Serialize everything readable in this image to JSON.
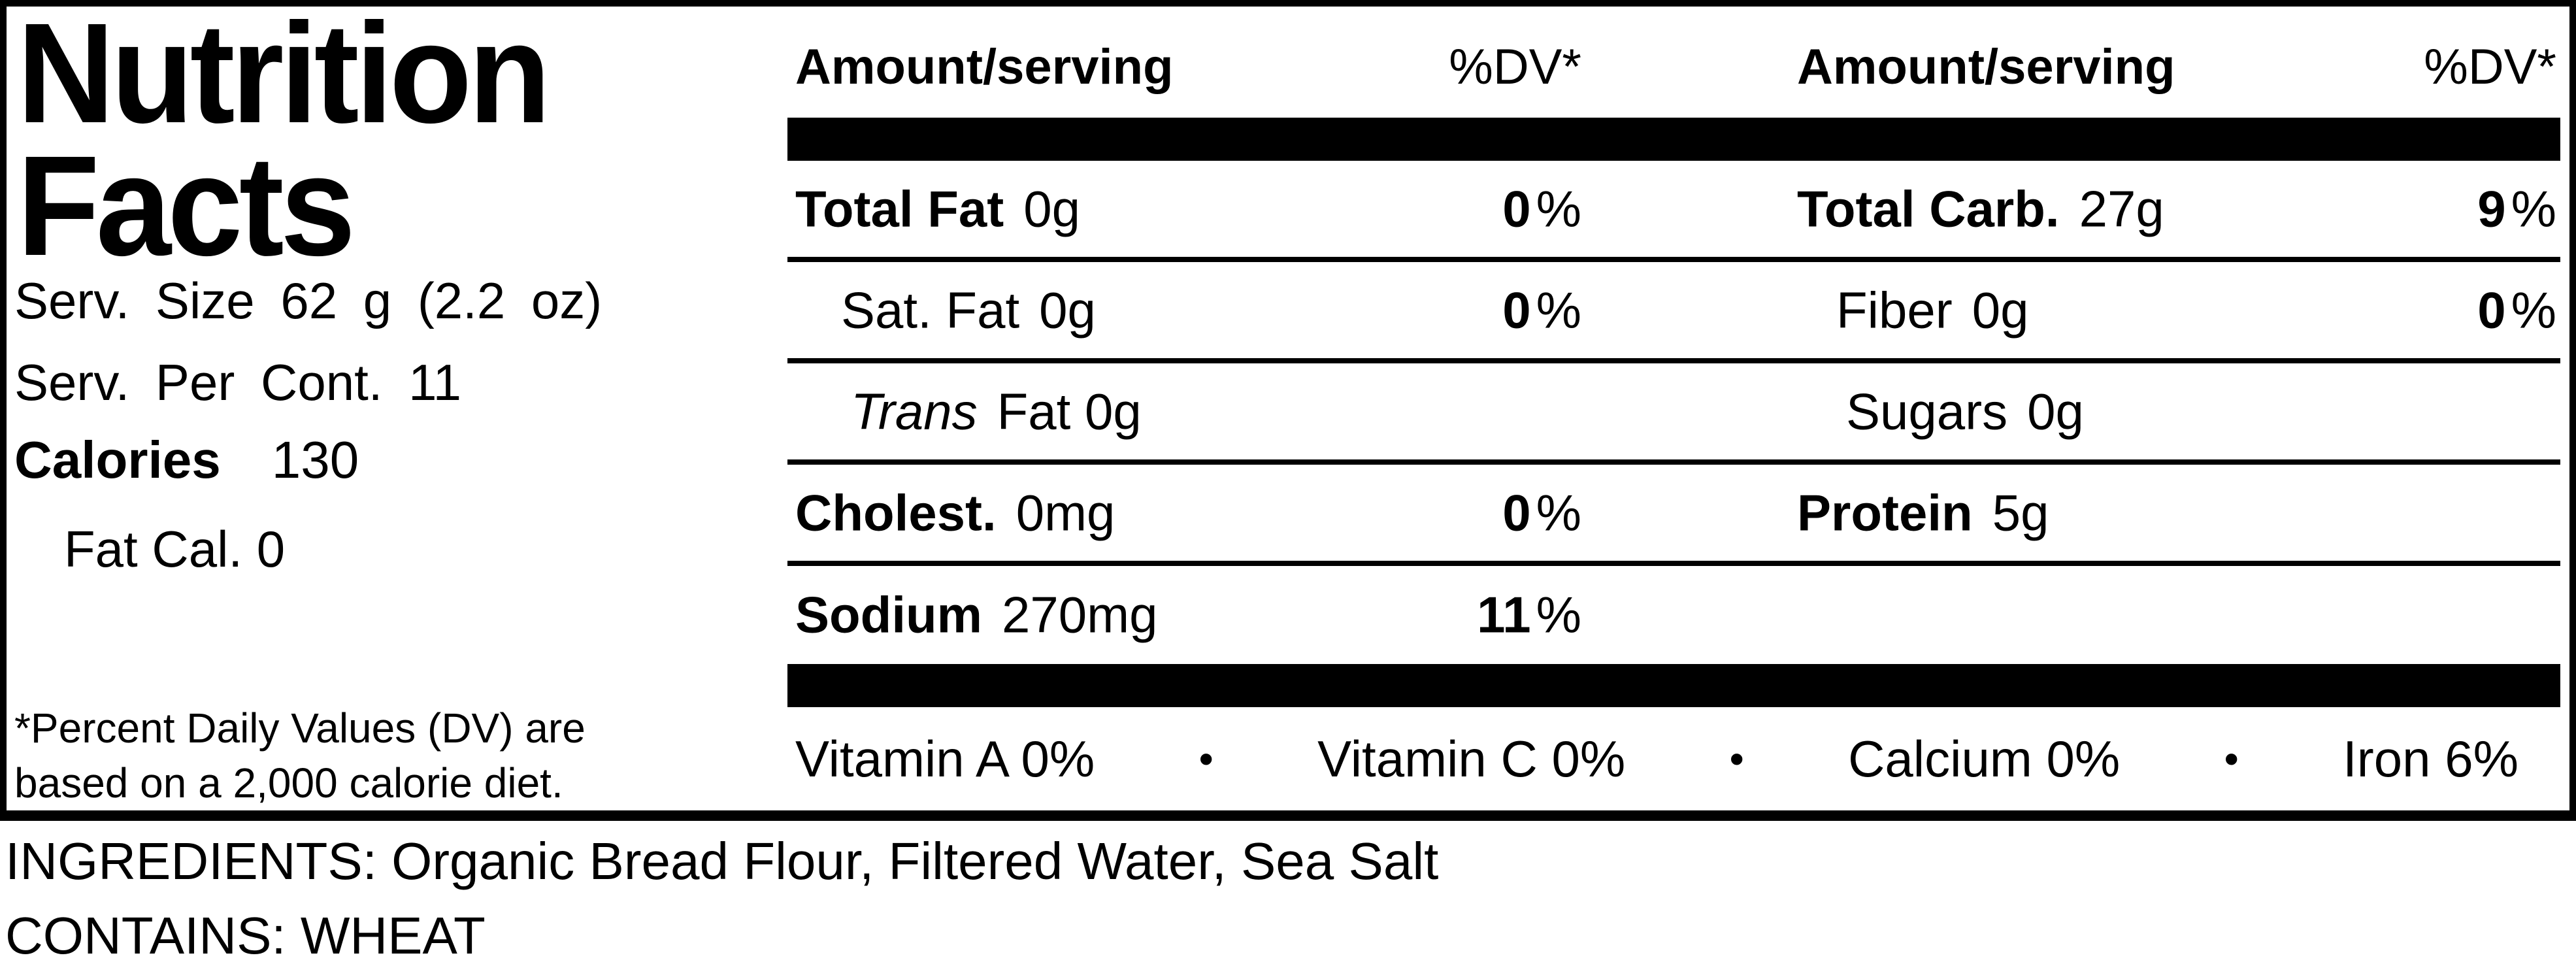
{
  "colors": {
    "text": "#000000",
    "background": "#ffffff"
  },
  "title": {
    "line1": "Nutrition",
    "line2": "Facts"
  },
  "serving": {
    "serv_size": "Serv. Size 62 g (2.2 oz)",
    "serv_per_cont": "Serv. Per Cont. 11",
    "calories_label": "Calories",
    "calories_value": "130",
    "fat_cal": "Fat Cal. 0"
  },
  "footnote": {
    "line1": "*Percent Daily Values (DV) are",
    "line2": "based on a 2,000 calorie diet."
  },
  "table": {
    "header": {
      "amount": "Amount/serving",
      "dv": "%DV*"
    },
    "rows": [
      {
        "mid": {
          "label": "Total Fat",
          "value": "0g",
          "dv_num": "0",
          "dv_sign": "%"
        },
        "right": {
          "label": "Total Carb.",
          "value": "27g",
          "dv_num": "9",
          "dv_sign": "%"
        }
      },
      {
        "mid": {
          "label": "Sat. Fat",
          "value": "0g",
          "dv_num": "0",
          "dv_sign": "%"
        },
        "right": {
          "label": "Fiber",
          "value": "0g",
          "dv_num": "0",
          "dv_sign": "%"
        }
      },
      {
        "mid": {
          "label": "Trans",
          "value": "Fat 0g",
          "dv_num": "",
          "dv_sign": ""
        },
        "right": {
          "label": "Sugars",
          "value": "0g",
          "dv_num": "",
          "dv_sign": ""
        }
      },
      {
        "mid": {
          "label": "Cholest.",
          "value": "0mg",
          "dv_num": "0",
          "dv_sign": "%"
        },
        "right": {
          "label": "Protein",
          "value": "5g",
          "dv_num": "",
          "dv_sign": ""
        }
      },
      {
        "mid": {
          "label": "Sodium",
          "value": "270mg",
          "dv_num": "11",
          "dv_sign": "%"
        },
        "right": {
          "label": "",
          "value": "",
          "dv_num": "",
          "dv_sign": ""
        }
      }
    ]
  },
  "vitamins": {
    "separator": "•",
    "items": [
      "Vitamin A 0%",
      "Vitamin C 0%",
      "Calcium 0%",
      "Iron 6%"
    ]
  },
  "statements": {
    "ingredients": "INGREDIENTS: Organic Bread Flour, Filtered Water, Sea Salt",
    "contains": "CONTAINS: WHEAT"
  }
}
